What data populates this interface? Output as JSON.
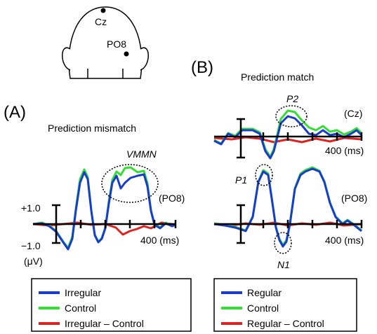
{
  "head": {
    "electrodes": [
      "Cz",
      "PO8"
    ]
  },
  "panel_b_label": "(B)",
  "panel_a_label": "(A)",
  "panel_a": {
    "title": "Prediction mismatch",
    "annotation": "VMMN",
    "channel": "(PO8)",
    "y_top": "+1.0",
    "y_bottom": "−1.0",
    "y_unit": "(μV)",
    "x_label": "400 (ms)",
    "legend": [
      "Irregular",
      "Control",
      "Irregular – Control"
    ]
  },
  "panel_b": {
    "title": "Prediction match",
    "cz": {
      "annotation": "P2",
      "channel": "(Cz)",
      "x_label": "400 (ms)"
    },
    "po8": {
      "annotations": [
        "P1",
        "N1"
      ],
      "channel": "(PO8)",
      "x_label": "400 (ms)"
    },
    "legend": [
      "Regular",
      "Control",
      "Regular – Control"
    ]
  }
}
